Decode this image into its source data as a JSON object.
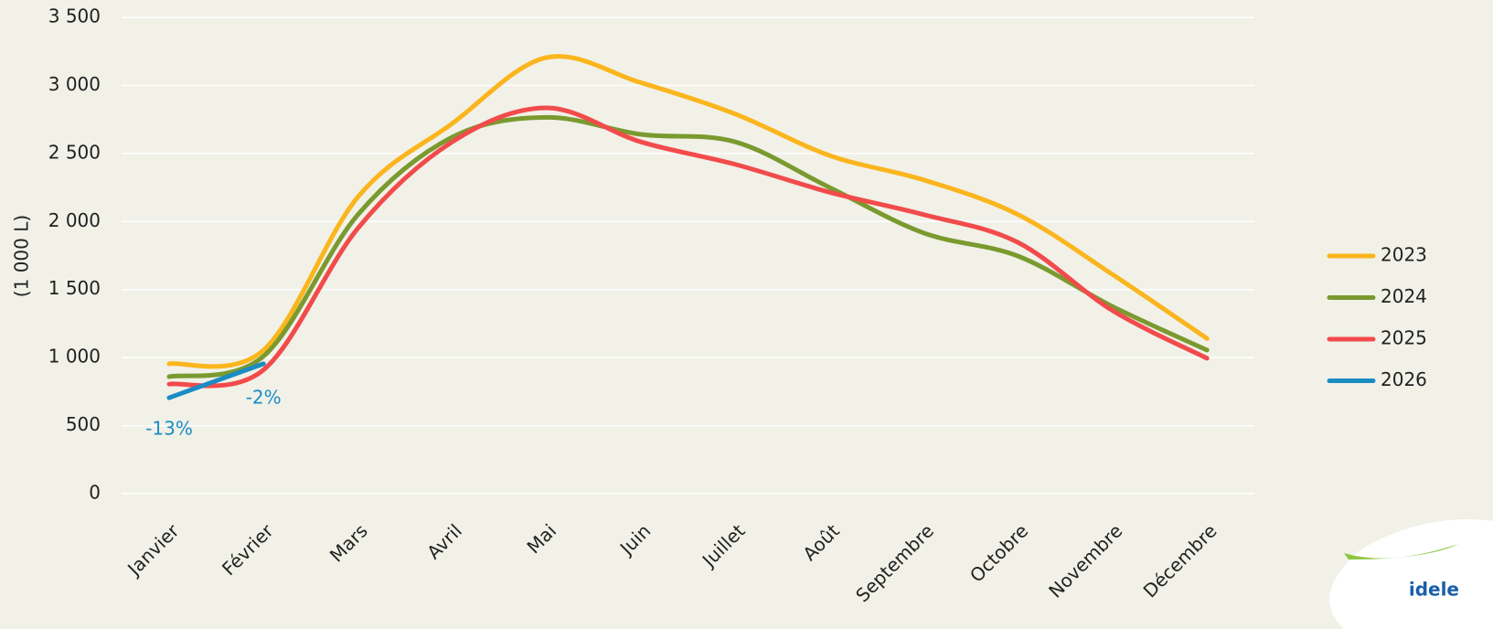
{
  "chart_data": {
    "type": "line",
    "y_label": "(1 000 L)",
    "categories": [
      "Janvier",
      "Février",
      "Mars",
      "Avril",
      "Mai",
      "Juin",
      "Juillet",
      "Août",
      "Septembre",
      "Octobre",
      "Novembre",
      "Décembre"
    ],
    "series": [
      {
        "name": "2023",
        "color": "#fbb51d",
        "values": [
          955,
          1055,
          2180,
          2720,
          3205,
          3020,
          2790,
          2485,
          2305,
          2050,
          1610,
          1140
        ]
      },
      {
        "name": "2024",
        "color": "#7a9a2f",
        "values": [
          860,
          1010,
          2050,
          2620,
          2765,
          2640,
          2585,
          2250,
          1915,
          1745,
          1375,
          1055
        ]
      },
      {
        "name": "2025",
        "color": "#f24b4b",
        "values": [
          805,
          910,
          1950,
          2585,
          2835,
          2585,
          2420,
          2215,
          2050,
          1845,
          1345,
          995
        ]
      },
      {
        "name": "2026",
        "color": "#1a8cc4",
        "values": [
          705,
          955,
          null,
          null,
          null,
          null,
          null,
          null,
          null,
          null,
          null,
          null
        ]
      }
    ],
    "annotations": [
      "-13%",
      "-2%"
    ],
    "ylim": [
      0,
      3500
    ],
    "yticks": [
      0,
      500,
      {
        "value": 1000,
        "label": "1 000"
      },
      {
        "value": 1500,
        "label": "1 500"
      },
      {
        "value": 2000,
        "label": "2 000"
      },
      {
        "value": 2500,
        "label": "2 500"
      },
      {
        "value": 3000,
        "label": "3 000"
      },
      {
        "value": 3500,
        "label": "3 500"
      }
    ],
    "grid": true,
    "legend": "right"
  },
  "logo": "idele"
}
